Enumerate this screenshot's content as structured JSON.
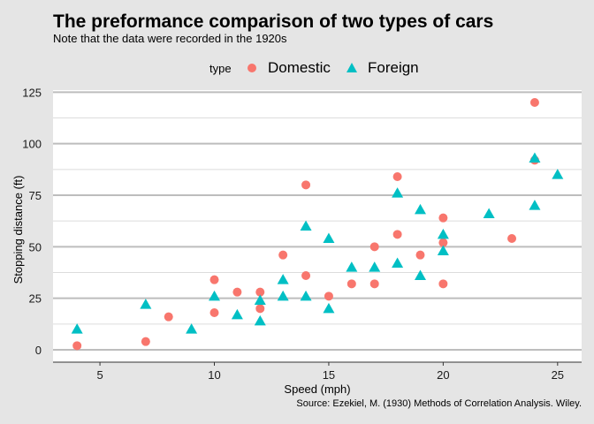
{
  "chart_data": {
    "type": "scatter",
    "title": "The preformance comparison of two types of cars",
    "subtitle": "Note that the data were recorded in the 1920s",
    "caption": "Source: Ezekiel, M. (1930) Methods of Correlation Analysis. Wiley.",
    "xlabel": "Speed (mph)",
    "ylabel": "Stopping distance (ft)",
    "xlim": [
      2.95,
      26.05
    ],
    "ylim": [
      -6,
      126
    ],
    "x_ticks": [
      5,
      10,
      15,
      20,
      25
    ],
    "y_ticks": [
      0,
      25,
      50,
      75,
      100,
      125
    ],
    "legend": {
      "title": "type",
      "placement": "top"
    },
    "series": [
      {
        "name": "Domestic",
        "color": "#F8766D",
        "marker": "circle",
        "points": [
          [
            4,
            2
          ],
          [
            7,
            4
          ],
          [
            8,
            16
          ],
          [
            10,
            18
          ],
          [
            10,
            34
          ],
          [
            11,
            28
          ],
          [
            12,
            20
          ],
          [
            12,
            28
          ],
          [
            13,
            46
          ],
          [
            14,
            36
          ],
          [
            14,
            80
          ],
          [
            15,
            26
          ],
          [
            16,
            32
          ],
          [
            17,
            32
          ],
          [
            17,
            50
          ],
          [
            18,
            56
          ],
          [
            18,
            84
          ],
          [
            19,
            46
          ],
          [
            20,
            32
          ],
          [
            20,
            52
          ],
          [
            20,
            64
          ],
          [
            23,
            54
          ],
          [
            24,
            92
          ],
          [
            24,
            120
          ]
        ]
      },
      {
        "name": "Foreign",
        "color": "#00BFC4",
        "marker": "triangle",
        "points": [
          [
            4,
            10
          ],
          [
            7,
            22
          ],
          [
            9,
            10
          ],
          [
            10,
            26
          ],
          [
            11,
            17
          ],
          [
            12,
            14
          ],
          [
            12,
            24
          ],
          [
            13,
            26
          ],
          [
            13,
            34
          ],
          [
            14,
            26
          ],
          [
            14,
            60
          ],
          [
            15,
            20
          ],
          [
            15,
            54
          ],
          [
            16,
            40
          ],
          [
            17,
            40
          ],
          [
            18,
            42
          ],
          [
            18,
            76
          ],
          [
            19,
            36
          ],
          [
            19,
            68
          ],
          [
            20,
            48
          ],
          [
            20,
            56
          ],
          [
            22,
            66
          ],
          [
            24,
            70
          ],
          [
            24,
            93
          ],
          [
            25,
            85
          ]
        ]
      }
    ]
  }
}
